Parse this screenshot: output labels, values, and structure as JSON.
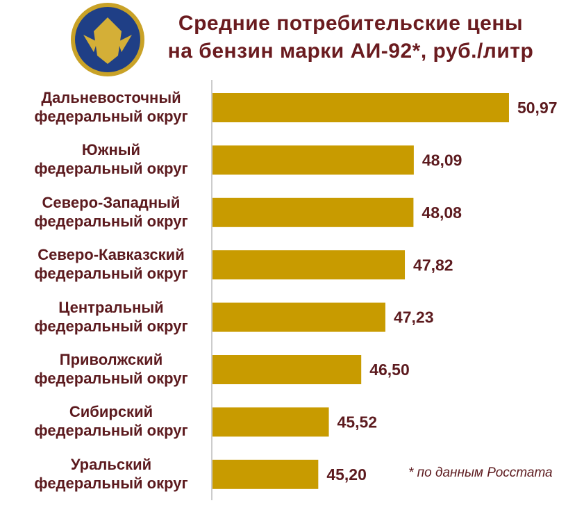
{
  "chart_data": {
    "type": "bar",
    "orientation": "horizontal",
    "title": "Средние потребительские цены\nна бензин марки АИ-92*, руб./литр",
    "categories": [
      "Дальневосточный\nфедеральный округ",
      "Южный\nфедеральный округ",
      "Северо-Западный\nфедеральный округ",
      "Северо-Кавказский\nфедеральный округ",
      "Центральный\nфедеральный округ",
      "Приволжский\nфедеральный округ",
      "Сибирский\nфедеральный округ",
      "Уральский\nфедеральный округ"
    ],
    "values": [
      50.97,
      48.09,
      48.08,
      47.82,
      47.23,
      46.5,
      45.52,
      45.2
    ],
    "value_labels": [
      "50,97",
      "48,09",
      "48,08",
      "47,82",
      "47,23",
      "46,50",
      "45,52",
      "45,20"
    ],
    "color": "#c89b00",
    "xlim": [
      42,
      52
    ],
    "note": "* по данным Росстата"
  }
}
